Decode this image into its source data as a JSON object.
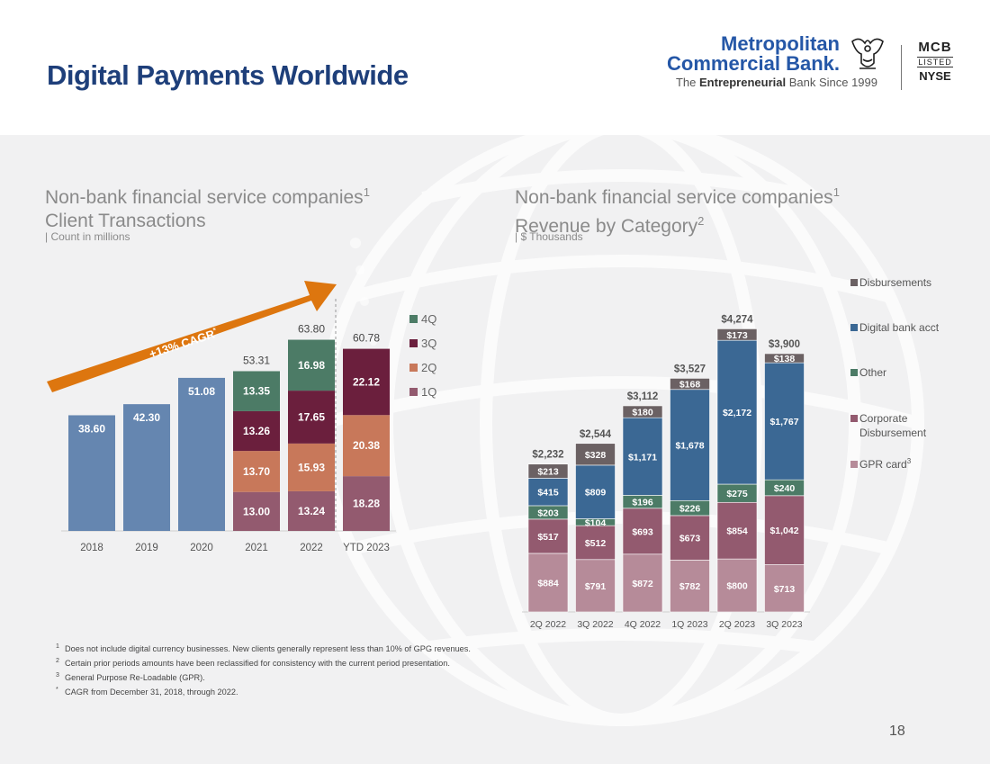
{
  "page": {
    "title": "Digital Payments Worldwide",
    "page_number": "18"
  },
  "logo": {
    "line1": "Metropolitan",
    "line2": "Commercial Bank.",
    "tagline_pre": "The ",
    "tagline_bold": "Entrepreneurial",
    "tagline_post": " Bank Since 1999",
    "ticker1": "MCB",
    "ticker2": "LISTED",
    "ticker3": "NYSE"
  },
  "left_chart": {
    "title_line1": "Non-bank financial service companies",
    "title_sup": "1",
    "title_line2": "Client Transactions",
    "unit": "| Count in millions",
    "cagr": "+13% CAGR",
    "cagr_sup": "*"
  },
  "right_chart": {
    "title_line1": "Non-bank financial service companies",
    "title_sup1": "1",
    "title_line2": "Revenue by Category",
    "title_sup2": "2",
    "unit": "| $ Thousands"
  },
  "footnotes": [
    {
      "mark": "1",
      "text": "Does not include digital currency businesses. New clients generally represent less than 10% of GPG revenues."
    },
    {
      "mark": "2",
      "text": "Certain prior periods amounts have been reclassified for consistency with the current period presentation."
    },
    {
      "mark": "3",
      "text": "General Purpose Re-Loadable  (GPR)."
    },
    {
      "mark": "*",
      "text": "CAGR from December 31, 2018, through 2022."
    }
  ],
  "colors": {
    "title_blue": "#1e3f7a",
    "annual": "#6586b0",
    "q1": "#935a6f",
    "q2": "#c8785a",
    "q3": "#6b1f3d",
    "q4": "#4c7b66",
    "gpr": "#b68b99",
    "corp": "#935a6f",
    "other": "#4c7b66",
    "digital": "#3b6894",
    "disb": "#6b6163",
    "arrow": "#dd760f"
  },
  "chart_data": [
    {
      "type": "bar",
      "stacked": true,
      "title": "Non-bank financial service companies Client Transactions",
      "ylabel": "Count in millions",
      "categories": [
        "2018",
        "2019",
        "2020",
        "2021",
        "2022",
        "YTD 2023"
      ],
      "annual_values": [
        38.6,
        42.3,
        51.08,
        null,
        null,
        null
      ],
      "annual_labels": [
        "38.60",
        "42.30",
        "51.08",
        null,
        null,
        null
      ],
      "series": [
        {
          "name": "1Q",
          "values": [
            null,
            null,
            null,
            13.0,
            13.24,
            18.28
          ],
          "labels": [
            null,
            null,
            null,
            "13.00",
            "13.24",
            "18.28"
          ]
        },
        {
          "name": "2Q",
          "values": [
            null,
            null,
            null,
            13.7,
            15.93,
            20.38
          ],
          "labels": [
            null,
            null,
            null,
            "13.70",
            "15.93",
            "20.38"
          ]
        },
        {
          "name": "3Q",
          "values": [
            null,
            null,
            null,
            13.26,
            17.65,
            22.12
          ],
          "labels": [
            null,
            null,
            null,
            "13.26",
            "17.65",
            "22.12"
          ]
        },
        {
          "name": "4Q",
          "values": [
            null,
            null,
            null,
            13.35,
            16.98,
            null
          ],
          "labels": [
            null,
            null,
            null,
            "13.35",
            "16.98",
            null
          ]
        }
      ],
      "totals": [
        null,
        null,
        null,
        "53.31",
        "63.80",
        "60.78"
      ],
      "legend": [
        "4Q",
        "3Q",
        "2Q",
        "1Q"
      ],
      "annotation": "+13% CAGR*",
      "ylim": [
        0,
        70
      ]
    },
    {
      "type": "bar",
      "stacked": true,
      "title": "Non-bank financial service companies Revenue by Category",
      "ylabel": "$ Thousands",
      "categories": [
        "2Q 2022",
        "3Q 2022",
        "4Q 2022",
        "1Q 2023",
        "2Q 2023",
        "3Q 2023"
      ],
      "series": [
        {
          "name": "GPR card",
          "legend_sup": "3",
          "values": [
            884,
            791,
            872,
            782,
            800,
            713
          ],
          "labels": [
            "$884",
            "$791",
            "$872",
            "$782",
            "$800",
            "$713"
          ]
        },
        {
          "name": "Corporate Disbursement",
          "values": [
            517,
            512,
            693,
            673,
            854,
            1042
          ],
          "labels": [
            "$517",
            "$512",
            "$693",
            "$673",
            "$854",
            "$1,042"
          ]
        },
        {
          "name": "Other",
          "values": [
            203,
            104,
            196,
            226,
            275,
            240
          ],
          "labels": [
            "$203",
            "$104",
            "$196",
            "$226",
            "$275",
            "$240"
          ]
        },
        {
          "name": "Digital bank acct",
          "values": [
            415,
            809,
            1171,
            1678,
            2172,
            1767
          ],
          "labels": [
            "$415",
            "$809",
            "$1,171",
            "$1,678",
            "$2,172",
            "$1,767"
          ]
        },
        {
          "name": "Disbursements",
          "values": [
            213,
            328,
            180,
            168,
            173,
            138
          ],
          "labels": [
            "$213",
            "$328",
            "$180",
            "$168",
            "$173",
            "$138"
          ]
        }
      ],
      "totals": [
        "$2,232",
        "$2,544",
        "$3,112",
        "$3,527",
        "$4,274",
        "$3,900"
      ],
      "legend": [
        {
          "name": "Disbursements",
          "line1": "Disbursements",
          "line2": ""
        },
        {
          "name": "Digital bank acct",
          "line1": "Digital bank acct",
          "line2": ""
        },
        {
          "name": "Other",
          "line1": "Other",
          "line2": ""
        },
        {
          "name": "Corporate Disbursement",
          "line1": "Corporate",
          "line2": "Disbursement"
        },
        {
          "name": "GPR card",
          "line1": "GPR card",
          "line2": "",
          "sup": "3"
        }
      ],
      "ylim": [
        0,
        4500
      ]
    }
  ]
}
